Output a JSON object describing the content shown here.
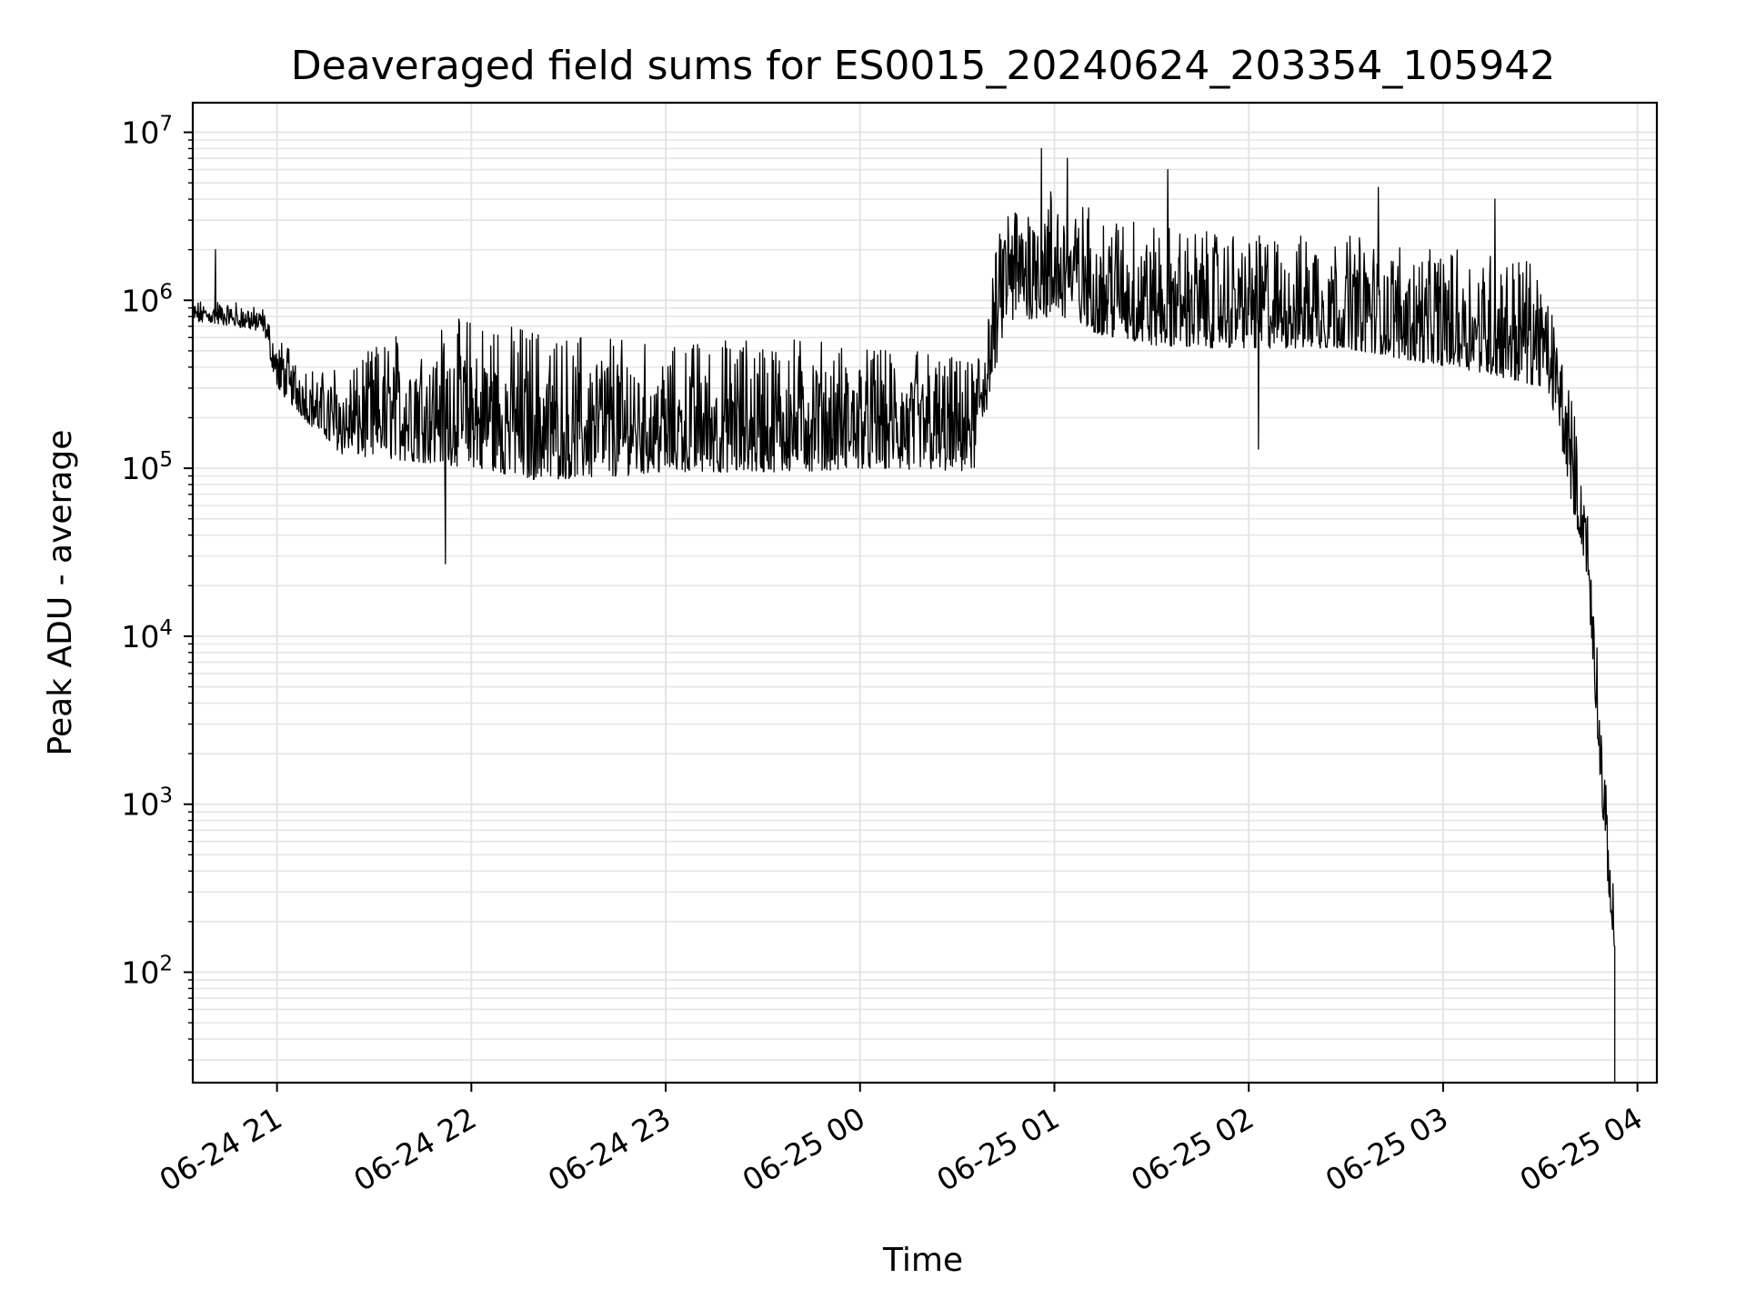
{
  "chart_data": {
    "type": "line",
    "title": "Deaveraged field sums for ES0015_20240624_203354_105942",
    "xlabel": "Time",
    "ylabel": "Peak ADU - average",
    "yscale": "log",
    "grid": true,
    "line_color": "#000000",
    "grid_color": "#e5e5e5",
    "xlim": [
      "06-24 20:34",
      "06-25 04:06"
    ],
    "ylim": [
      22,
      15000000
    ],
    "x_ticks": [
      {
        "label": "06-24 21",
        "t": "06-24 21:00"
      },
      {
        "label": "06-24 22",
        "t": "06-24 22:00"
      },
      {
        "label": "06-24 23",
        "t": "06-24 23:00"
      },
      {
        "label": "06-25 00",
        "t": "06-25 00:00"
      },
      {
        "label": "06-25 01",
        "t": "06-25 01:00"
      },
      {
        "label": "06-25 02",
        "t": "06-25 02:00"
      },
      {
        "label": "06-25 03",
        "t": "06-25 03:00"
      },
      {
        "label": "06-25 04",
        "t": "06-25 04:00"
      }
    ],
    "y_ticks": [
      {
        "base": "10",
        "exp": "2",
        "value": 100
      },
      {
        "base": "10",
        "exp": "3",
        "value": 1000
      },
      {
        "base": "10",
        "exp": "4",
        "value": 10000
      },
      {
        "base": "10",
        "exp": "5",
        "value": 100000
      },
      {
        "base": "10",
        "exp": "6",
        "value": 1000000
      },
      {
        "base": "10",
        "exp": "7",
        "value": 10000000
      }
    ],
    "series": [
      {
        "envelope": [
          {
            "t": "06-24 20:34",
            "low": 700000,
            "high": 1000000
          },
          {
            "t": "06-24 20:45",
            "low": 650000,
            "high": 1000000
          },
          {
            "t": "06-24 20:56",
            "low": 600000,
            "high": 900000
          },
          {
            "t": "06-24 21:00",
            "low": 250000,
            "high": 600000
          },
          {
            "t": "06-24 21:10",
            "low": 150000,
            "high": 400000
          },
          {
            "t": "06-24 21:20",
            "low": 90000,
            "high": 400000
          },
          {
            "t": "06-24 21:40",
            "low": 70000,
            "high": 700000
          },
          {
            "t": "06-24 22:00",
            "low": 60000,
            "high": 800000
          },
          {
            "t": "06-24 22:20",
            "low": 50000,
            "high": 700000
          },
          {
            "t": "06-24 22:40",
            "low": 55000,
            "high": 600000
          },
          {
            "t": "06-24 23:00",
            "low": 60000,
            "high": 550000
          },
          {
            "t": "06-24 23:20",
            "low": 60000,
            "high": 600000
          },
          {
            "t": "06-24 23:40",
            "low": 60000,
            "high": 600000
          },
          {
            "t": "06-25 00:00",
            "low": 65000,
            "high": 550000
          },
          {
            "t": "06-25 00:20",
            "low": 65000,
            "high": 500000
          },
          {
            "t": "06-25 00:35",
            "low": 65000,
            "high": 450000
          },
          {
            "t": "06-25 00:45",
            "low": 500000,
            "high": 4000000
          },
          {
            "t": "06-25 01:00",
            "low": 500000,
            "high": 5000000
          },
          {
            "t": "06-25 01:15",
            "low": 400000,
            "high": 3500000
          },
          {
            "t": "06-25 01:30",
            "low": 350000,
            "high": 3000000
          },
          {
            "t": "06-25 01:50",
            "low": 350000,
            "high": 2500000
          },
          {
            "t": "06-25 02:10",
            "low": 350000,
            "high": 2500000
          },
          {
            "t": "06-25 02:30",
            "low": 350000,
            "high": 2500000
          },
          {
            "t": "06-25 02:50",
            "low": 300000,
            "high": 2000000
          },
          {
            "t": "06-25 03:10",
            "low": 250000,
            "high": 2000000
          },
          {
            "t": "06-25 03:30",
            "low": 200000,
            "high": 1700000
          },
          {
            "t": "06-25 03:35",
            "low": 150000,
            "high": 700000
          },
          {
            "t": "06-25 03:40",
            "low": 40000,
            "high": 250000
          },
          {
            "t": "06-25 03:44",
            "low": 20000,
            "high": 80000
          },
          {
            "t": "06-25 03:47",
            "low": 3000,
            "high": 15000
          },
          {
            "t": "06-25 03:49",
            "low": 700,
            "high": 3000
          },
          {
            "t": "06-25 03:51",
            "low": 250,
            "high": 800
          },
          {
            "t": "06-25 03:53",
            "low": 90,
            "high": 250
          }
        ],
        "spikes": [
          {
            "t": "06-24 20:41",
            "value": 2000000
          },
          {
            "t": "06-24 21:52",
            "value": 27000
          },
          {
            "t": "06-25 00:56",
            "value": 8000000
          },
          {
            "t": "06-25 01:04",
            "value": 7000000
          },
          {
            "t": "06-25 01:35",
            "value": 6000000
          },
          {
            "t": "06-25 02:40",
            "value": 4700000
          },
          {
            "t": "06-25 03:16",
            "value": 4000000
          },
          {
            "t": "06-25 02:03",
            "value": 130000
          }
        ],
        "end": {
          "t": "06-25 03:53",
          "value": 22
        }
      }
    ]
  }
}
